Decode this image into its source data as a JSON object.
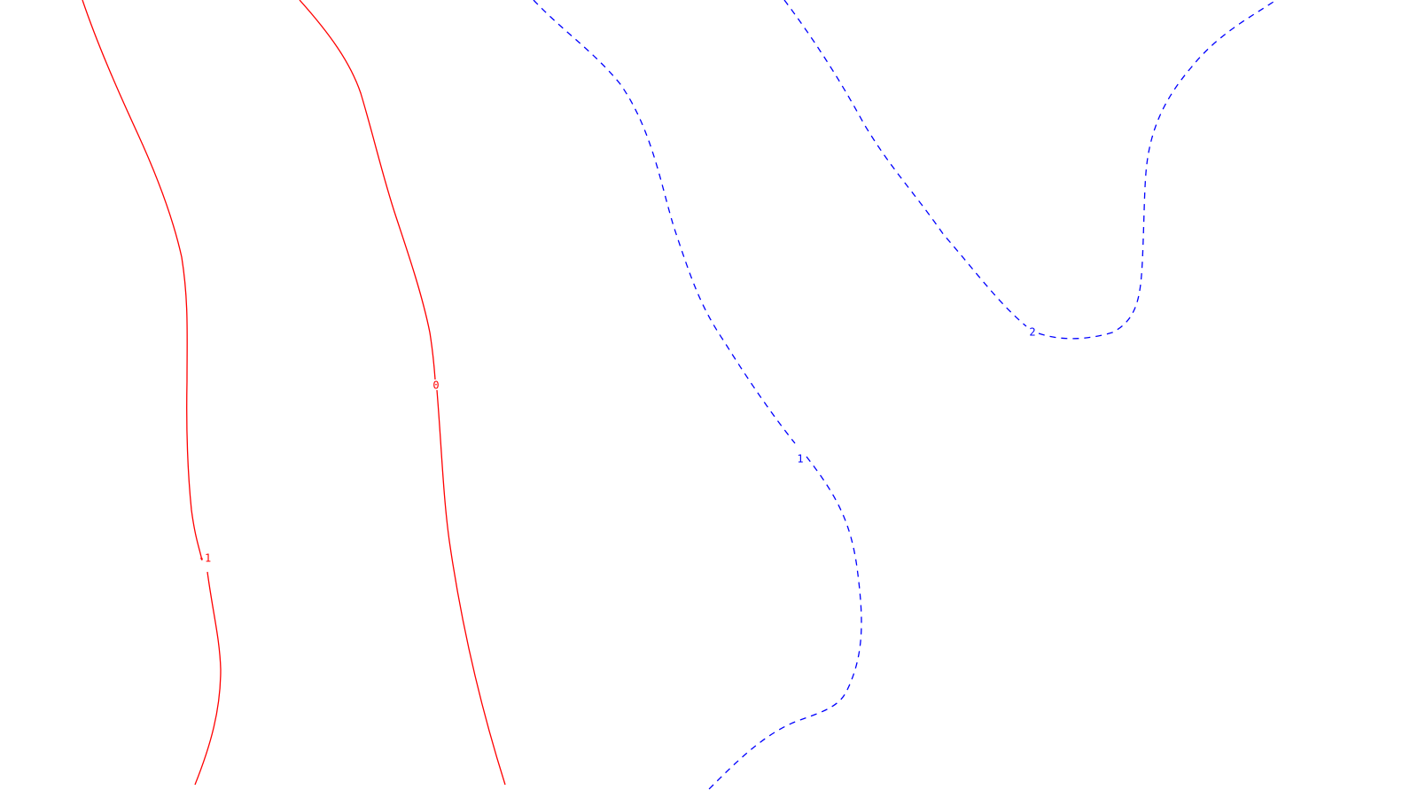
{
  "colors": {
    "negative_or_zero": "#ff0000",
    "positive": "#0000ff",
    "background": "#ffffff"
  },
  "contours": [
    {
      "id": "contour-minus-1",
      "level_label": "-1",
      "style": "solid",
      "color": "#ff0000"
    },
    {
      "id": "contour-0",
      "level_label": "0",
      "style": "solid",
      "color": "#ff0000"
    },
    {
      "id": "contour-1",
      "level_label": "1",
      "style": "dashed",
      "color": "#0000ff"
    },
    {
      "id": "contour-2",
      "level_label": "2",
      "style": "dashed",
      "color": "#0000ff"
    }
  ]
}
